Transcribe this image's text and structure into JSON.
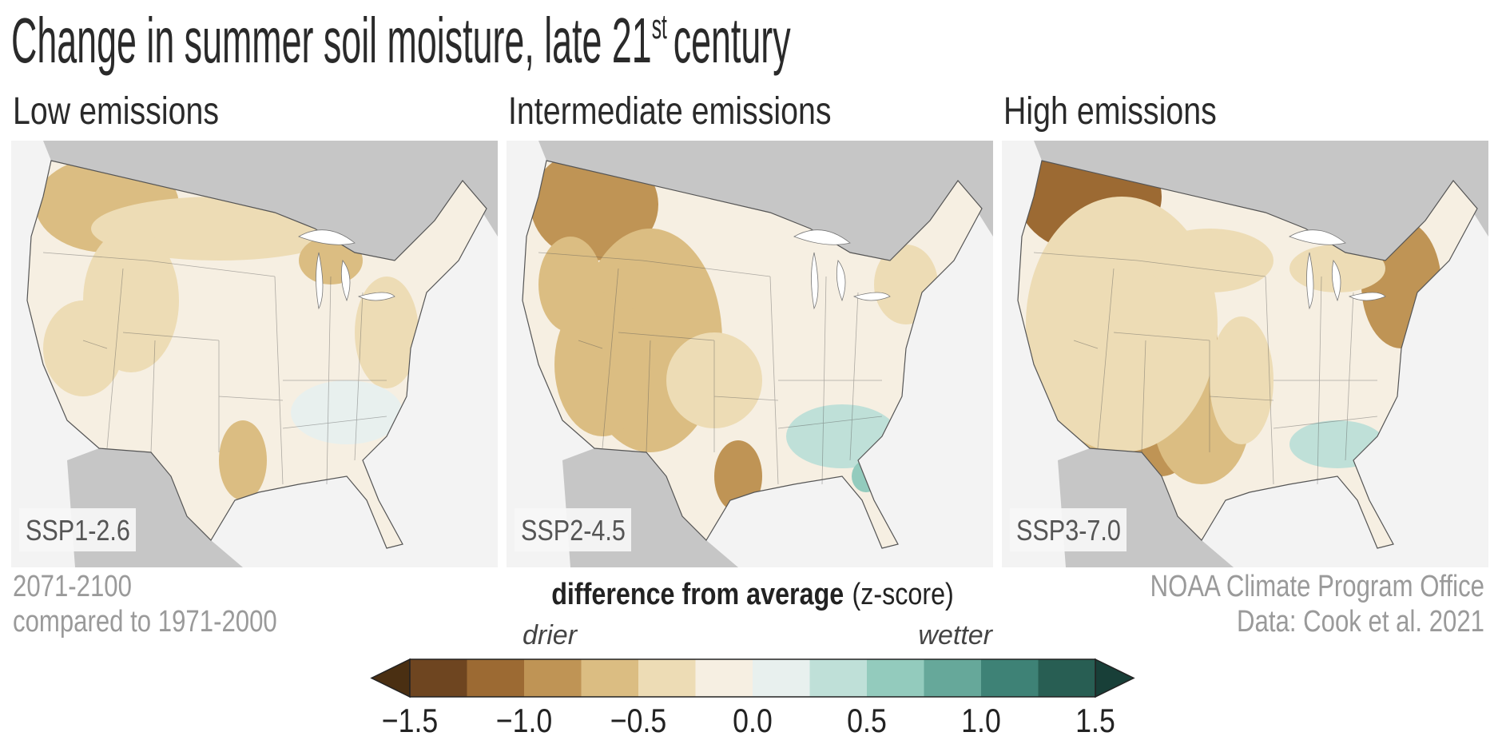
{
  "title": {
    "text": "Change in summer soil moisture, late 21",
    "superscript": "st",
    "suffix": "century"
  },
  "panels": [
    {
      "heading": "Low emissions",
      "scenario": "SSP1-2.6"
    },
    {
      "heading": "Intermediate emissions",
      "scenario": "SSP2-4.5"
    },
    {
      "heading": "High emissions",
      "scenario": "SSP3-7.0"
    }
  ],
  "period": {
    "line1": "2071-2100",
    "line2": "compared to 1971-2000"
  },
  "credit": {
    "line1": "NOAA Climate Program Office",
    "line2": "Data: Cook et al. 2021"
  },
  "legend": {
    "title_bold": "difference from average",
    "title_rest": "(z-score)",
    "low_label": "drier",
    "high_label": "wetter",
    "lim": [
      -1.5,
      1.5
    ],
    "colors": [
      "#6e4520",
      "#9c6a33",
      "#bf9455",
      "#dbbd82",
      "#eddcb5",
      "#f6efe2",
      "#e8f0ee",
      "#bfe0d8",
      "#93cbbd",
      "#66a89a",
      "#3e8276",
      "#285e53"
    ],
    "under_color": "#4a2f12",
    "over_color": "#183f38",
    "ticks": [
      {
        "value": -1.5,
        "label": "−1.5"
      },
      {
        "value": -1,
        "label": "−1.0"
      },
      {
        "value": -0.5,
        "label": "−0.5"
      },
      {
        "value": 0,
        "label": "0.0"
      },
      0.5,
      {
        "value": 1,
        "label": "1.0"
      },
      1.5
    ]
  }
}
